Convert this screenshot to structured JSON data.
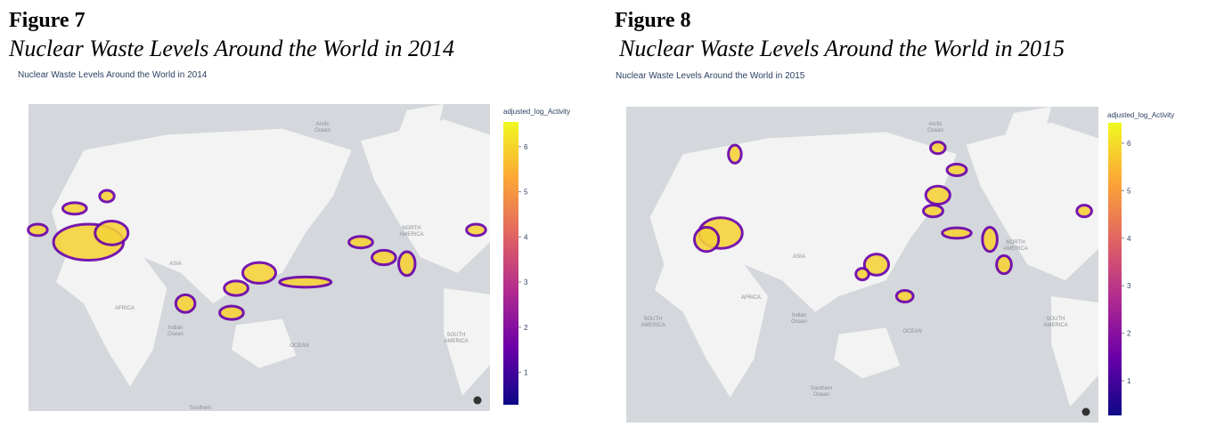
{
  "figures": [
    {
      "label": "Figure 7",
      "caption": "Nuclear Waste Levels Around the World in 2014",
      "plot_title": "Nuclear Waste Levels Around the World in 2014",
      "colorbar": {
        "title": "adjusted_log_Activity",
        "range": [
          0.28,
          6.55
        ],
        "ticks": [
          1,
          2,
          3,
          4,
          5,
          6
        ]
      },
      "map_labels": [
        [
          "Arctic",
          "Ocean"
        ],
        [
          "ASIA"
        ],
        [
          "AFRICA"
        ],
        [
          "Indian",
          "Ocean"
        ],
        [
          "OCEAN"
        ],
        [
          "NORTH",
          "AMERICA"
        ],
        [
          "SOUTH",
          "AMERICA"
        ],
        [
          "Southern"
        ]
      ]
    },
    {
      "label": "Figure 8",
      "caption": "Nuclear Waste Levels Around the World in 2015",
      "plot_title": "Nuclear Waste Levels Around the World in 2015",
      "colorbar": {
        "title": "adjusted_log_Activity",
        "range": [
          0.27,
          6.43
        ],
        "ticks": [
          1,
          2,
          3,
          4,
          5,
          6
        ]
      },
      "map_labels": [
        [
          "Arctic",
          "Ocean"
        ],
        [
          "ASIA"
        ],
        [
          "AFRICA"
        ],
        [
          "SOUTH",
          "AMERICA"
        ],
        [
          "Indian",
          "Ocean"
        ],
        [
          "OCEAN"
        ],
        [
          "NORTH",
          "AMERICA"
        ],
        [
          "SOUTH",
          "AMERICA"
        ],
        [
          "Southern",
          "Ocean"
        ]
      ]
    }
  ]
}
